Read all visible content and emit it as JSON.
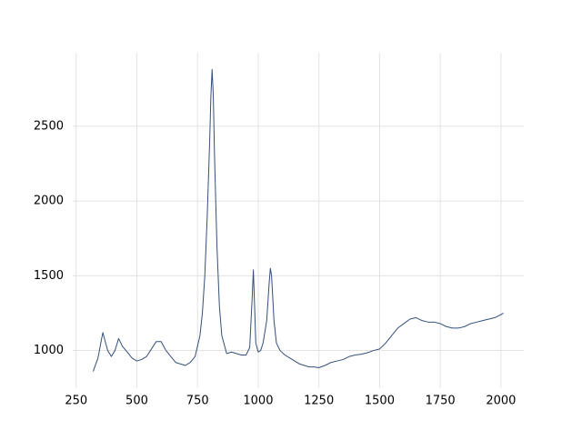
{
  "chart_data": {
    "type": "line",
    "x": [
      320,
      340,
      355,
      360,
      370,
      380,
      395,
      410,
      425,
      440,
      460,
      480,
      500,
      520,
      540,
      560,
      580,
      600,
      620,
      640,
      660,
      680,
      700,
      720,
      740,
      760,
      770,
      780,
      790,
      800,
      805,
      810,
      815,
      820,
      830,
      840,
      850,
      870,
      890,
      910,
      930,
      950,
      965,
      975,
      980,
      985,
      990,
      1000,
      1010,
      1020,
      1035,
      1045,
      1050,
      1055,
      1065,
      1075,
      1090,
      1110,
      1130,
      1150,
      1170,
      1190,
      1210,
      1230,
      1250,
      1275,
      1300,
      1325,
      1350,
      1375,
      1400,
      1425,
      1450,
      1475,
      1500,
      1525,
      1550,
      1575,
      1600,
      1625,
      1650,
      1675,
      1700,
      1725,
      1750,
      1775,
      1800,
      1825,
      1850,
      1875,
      1900,
      1925,
      1950,
      1975,
      2000,
      2010
    ],
    "series": [
      {
        "color": "#34507a",
        "values": [
          860,
          950,
          1080,
          1120,
          1060,
          1000,
          960,
          1000,
          1080,
          1030,
          990,
          950,
          930,
          940,
          960,
          1010,
          1060,
          1060,
          1000,
          960,
          920,
          910,
          900,
          920,
          960,
          1100,
          1250,
          1500,
          1900,
          2400,
          2700,
          2880,
          2700,
          2300,
          1700,
          1300,
          1100,
          980,
          990,
          980,
          970,
          970,
          1020,
          1350,
          1540,
          1300,
          1050,
          990,
          1000,
          1050,
          1200,
          1450,
          1550,
          1500,
          1200,
          1050,
          1000,
          970,
          950,
          930,
          910,
          900,
          890,
          890,
          885,
          900,
          920,
          930,
          940,
          960,
          970,
          975,
          985,
          1000,
          1010,
          1050,
          1100,
          1150,
          1180,
          1210,
          1220,
          1200,
          1190,
          1190,
          1180,
          1160,
          1150,
          1150,
          1160,
          1180,
          1190,
          1200,
          1210,
          1220,
          1240,
          1250
        ]
      }
    ],
    "xlim": [
      236,
      2094
    ],
    "ylim": [
      748,
      2992
    ],
    "xticks": [
      250,
      500,
      750,
      1000,
      1250,
      1500,
      1750,
      2000
    ],
    "yticks": [
      1000,
      1500,
      2000,
      2500
    ],
    "grid": true
  }
}
